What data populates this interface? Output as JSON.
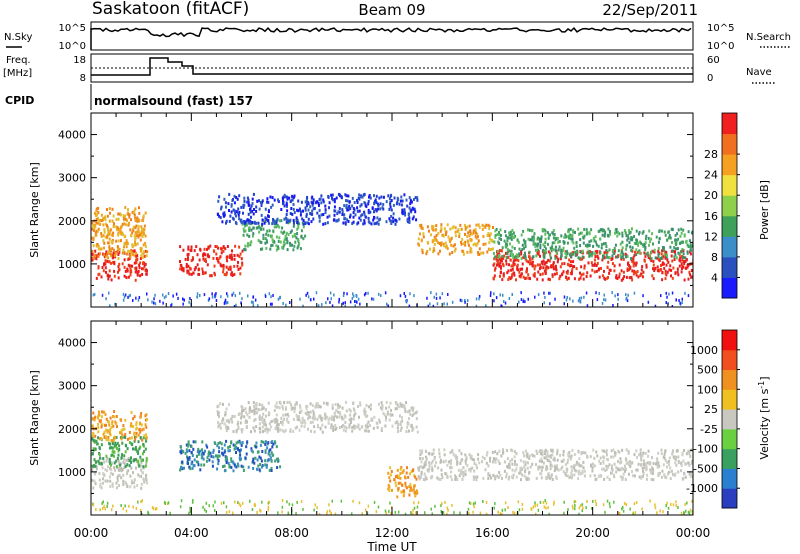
{
  "header": {
    "station": "Saskatoon (fitACF)",
    "beam": "Beam 09",
    "date": "22/Sep/2011"
  },
  "noise_panel": {
    "left_label": "N.Sky",
    "right_label": "N.Search",
    "ticks_left": [
      "10^5",
      "10^0"
    ],
    "ticks_right": [
      "10^5",
      "10^0"
    ]
  },
  "freq_panel": {
    "left_label_1": "Freq.",
    "left_label_2": "[MHz]",
    "right_label": "Nave",
    "ticks_left": [
      "18",
      "8"
    ],
    "ticks_right": [
      "60",
      "0"
    ]
  },
  "cpid_panel": {
    "label": "CPID",
    "value": "normalsound (fast) 157"
  },
  "chart_data": [
    {
      "type": "heatmap",
      "title": "",
      "ylabel": "Slant Range [km]",
      "yticks": [
        "1000",
        "2000",
        "3000",
        "4000"
      ],
      "ylim": [
        0,
        4500
      ],
      "xticks": [
        "00:00",
        "04:00",
        "08:00",
        "12:00",
        "16:00",
        "20:00",
        "00:00"
      ],
      "xlim_hours": [
        0,
        24
      ],
      "colorbar": {
        "label": "Power [dB]",
        "ticks": [
          "4",
          "8",
          "12",
          "16",
          "20",
          "24",
          "28"
        ],
        "colors": [
          "#1a1aff",
          "#2a4fbf",
          "#3b8ec7",
          "#3fa05a",
          "#8fd04a",
          "#f0e040",
          "#f5a020",
          "#f07020",
          "#f02020"
        ]
      },
      "echo_regions": [
        {
          "t_start": 0.0,
          "t_end": 2.2,
          "range_km": 1000,
          "level": "red"
        },
        {
          "t_start": 0.0,
          "t_end": 2.2,
          "range_km": 1500,
          "level": "orange"
        },
        {
          "t_start": 0.0,
          "t_end": 2.2,
          "range_km": 2000,
          "level": "orange"
        },
        {
          "t_start": 3.5,
          "t_end": 6.0,
          "range_km": 1100,
          "level": "red"
        },
        {
          "t_start": 6.0,
          "t_end": 8.5,
          "range_km": 1700,
          "level": "green"
        },
        {
          "t_start": 5.0,
          "t_end": 13.0,
          "range_km": 2300,
          "level": "blue"
        },
        {
          "t_start": 13.0,
          "t_end": 16.0,
          "range_km": 1600,
          "level": "orange"
        },
        {
          "t_start": 16.0,
          "t_end": 24.0,
          "range_km": 1000,
          "level": "red"
        },
        {
          "t_start": 16.0,
          "t_end": 24.0,
          "range_km": 1500,
          "level": "green"
        }
      ]
    },
    {
      "type": "heatmap",
      "title": "",
      "ylabel": "Slant Range [km]",
      "yticks": [
        "1000",
        "2000",
        "3000",
        "4000"
      ],
      "ylim": [
        0,
        4500
      ],
      "xticks": [
        "00:00",
        "04:00",
        "08:00",
        "12:00",
        "16:00",
        "20:00",
        "00:00"
      ],
      "xlim_hours": [
        0,
        24
      ],
      "xlabel": "Time UT",
      "colorbar": {
        "label": "Velocity [m s-1]",
        "label_main": "Velocity [m s",
        "label_exp": "-1",
        "label_end": "]",
        "ticks": [
          "1000",
          "500",
          "100",
          "25",
          "-25",
          "-100",
          "-500",
          "-1000"
        ],
        "colors": [
          "#2a3fbf",
          "#2a7fd0",
          "#3aa060",
          "#6ad040",
          "#c8c8c0",
          "#f0c020",
          "#f09020",
          "#f05020",
          "#f01010"
        ]
      },
      "echo_regions": [
        {
          "t_start": 0.0,
          "t_end": 2.2,
          "range_km": 1000,
          "level": "grey"
        },
        {
          "t_start": 0.0,
          "t_end": 2.2,
          "range_km": 1500,
          "level": "green"
        },
        {
          "t_start": 0.0,
          "t_end": 2.2,
          "range_km": 2100,
          "level": "orange"
        },
        {
          "t_start": 3.5,
          "t_end": 7.5,
          "range_km": 1400,
          "level": "blue"
        },
        {
          "t_start": 5.0,
          "t_end": 13.0,
          "range_km": 2300,
          "level": "grey"
        },
        {
          "t_start": 11.8,
          "t_end": 13.0,
          "range_km": 800,
          "level": "orange"
        },
        {
          "t_start": 13.0,
          "t_end": 24.0,
          "range_km": 1200,
          "level": "grey"
        }
      ]
    }
  ]
}
